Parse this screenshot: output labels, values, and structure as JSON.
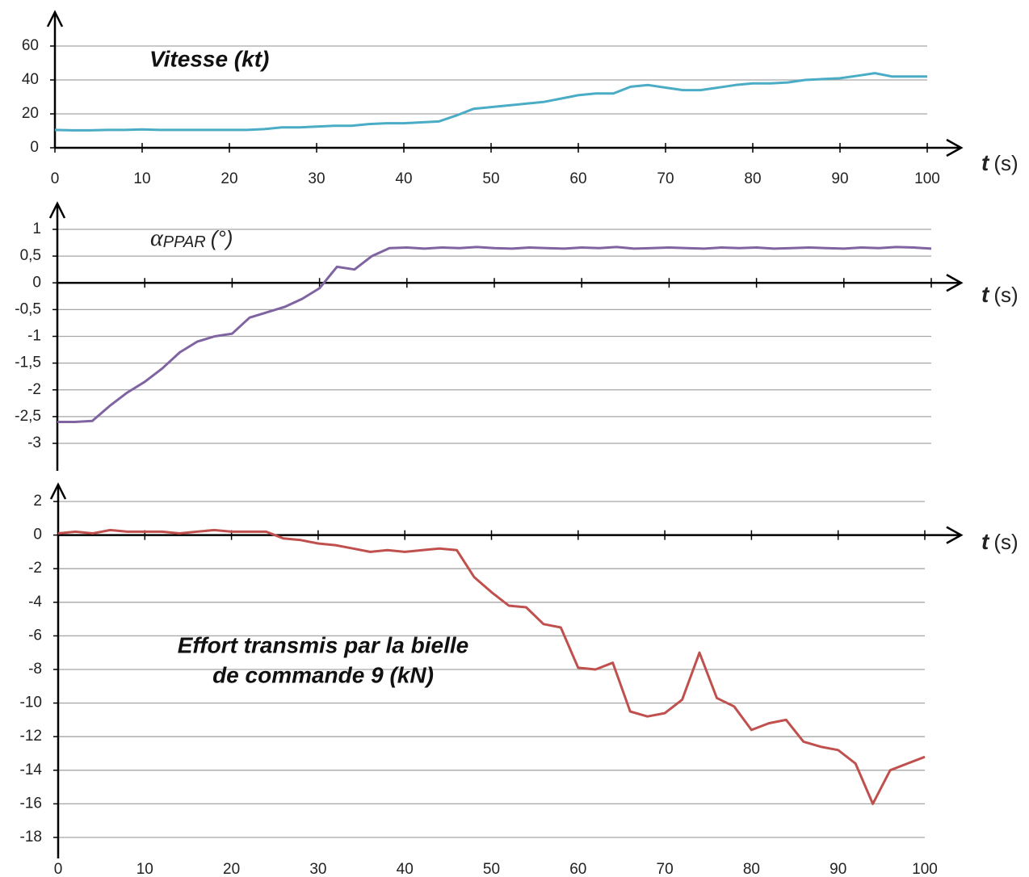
{
  "chart_data": [
    {
      "type": "line",
      "title": "Vitesse (kt)",
      "xlabel": "t",
      "xunit": "(s)",
      "x": [
        0,
        2,
        4,
        6,
        8,
        10,
        12,
        14,
        16,
        18,
        20,
        22,
        24,
        26,
        28,
        30,
        32,
        34,
        36,
        38,
        40,
        42,
        44,
        46,
        48,
        50,
        52,
        54,
        56,
        58,
        60,
        62,
        64,
        66,
        68,
        70,
        72,
        74,
        76,
        78,
        80,
        82,
        84,
        86,
        88,
        90,
        92,
        94,
        96,
        98,
        100
      ],
      "series": [
        {
          "color": "#4bacc6",
          "values": [
            10.5,
            10.3,
            10.3,
            10.5,
            10.5,
            10.8,
            10.5,
            10.5,
            10.5,
            10.5,
            10.5,
            10.5,
            11,
            12,
            12,
            12.5,
            13,
            13,
            14,
            14.5,
            14.5,
            15,
            15.5,
            19,
            23,
            24,
            25,
            26,
            27,
            29,
            31,
            32,
            32,
            36,
            37,
            35.5,
            34,
            34,
            35.5,
            37,
            38,
            38,
            38.5,
            40,
            40.5,
            41,
            42.5,
            44,
            42,
            42,
            42
          ]
        }
      ],
      "xlim": [
        0,
        100
      ],
      "xticks": [
        0,
        10,
        20,
        30,
        40,
        50,
        60,
        70,
        80,
        90,
        100
      ],
      "ylim": [
        0,
        60
      ],
      "yticks": [
        0,
        20,
        40,
        60
      ],
      "grid": true
    },
    {
      "type": "line",
      "ylabel_symbol": "α",
      "ylabel_subscript": "PPAR",
      "ylabel_unit": "(°)",
      "xlabel": "t",
      "xunit": "(s)",
      "x": [
        0,
        2,
        4,
        6,
        8,
        10,
        12,
        14,
        16,
        18,
        20,
        22,
        24,
        26,
        28,
        30,
        32,
        34,
        36,
        38,
        40,
        42,
        44,
        46,
        48,
        50,
        52,
        54,
        56,
        58,
        60,
        62,
        64,
        66,
        68,
        70,
        72,
        74,
        76,
        78,
        80,
        82,
        84,
        86,
        88,
        90,
        92,
        94,
        96,
        98,
        100
      ],
      "series": [
        {
          "color": "#8064a2",
          "values": [
            -2.6,
            -2.6,
            -2.58,
            -2.3,
            -2.05,
            -1.85,
            -1.6,
            -1.3,
            -1.1,
            -1.0,
            -0.95,
            -0.65,
            -0.55,
            -0.45,
            -0.3,
            -0.1,
            0.3,
            0.25,
            0.5,
            0.65,
            0.66,
            0.64,
            0.66,
            0.65,
            0.67,
            0.65,
            0.64,
            0.66,
            0.65,
            0.64,
            0.66,
            0.65,
            0.67,
            0.64,
            0.65,
            0.66,
            0.65,
            0.64,
            0.66,
            0.65,
            0.66,
            0.64,
            0.65,
            0.66,
            0.65,
            0.64,
            0.66,
            0.65,
            0.67,
            0.66,
            0.64
          ]
        }
      ],
      "xlim": [
        0,
        100
      ],
      "ylim": [
        -3,
        1
      ],
      "yticks": [
        {
          "value": -3,
          "label": "-3"
        },
        {
          "value": -2.5,
          "label": "-2,5"
        },
        {
          "value": -2,
          "label": "-2"
        },
        {
          "value": -1.5,
          "label": "-1,5"
        },
        {
          "value": -1,
          "label": "-1"
        },
        {
          "value": -0.5,
          "label": "-0,5"
        },
        0,
        {
          "value": 0.5,
          "label": "0,5"
        },
        1
      ],
      "grid": true
    },
    {
      "type": "line",
      "title": [
        "Effort transmis par la bielle",
        "de commande 9 (kN)"
      ],
      "xlabel": "t",
      "xunit": "(s)",
      "x": [
        0,
        2,
        4,
        6,
        8,
        10,
        12,
        14,
        16,
        18,
        20,
        22,
        24,
        26,
        28,
        30,
        32,
        34,
        36,
        38,
        40,
        42,
        44,
        46,
        48,
        50,
        52,
        54,
        56,
        58,
        60,
        62,
        64,
        66,
        68,
        70,
        72,
        74,
        76,
        78,
        80,
        82,
        84,
        86,
        88,
        90,
        92,
        94,
        96,
        98,
        100
      ],
      "series": [
        {
          "color": "#c0504d",
          "values": [
            0.1,
            0.2,
            0.1,
            0.3,
            0.2,
            0.2,
            0.2,
            0.1,
            0.2,
            0.3,
            0.2,
            0.2,
            0.2,
            -0.2,
            -0.3,
            -0.5,
            -0.6,
            -0.8,
            -1.0,
            -0.9,
            -1.0,
            -0.9,
            -0.8,
            -0.9,
            -2.5,
            -3.4,
            -4.2,
            -4.3,
            -5.3,
            -5.5,
            -7.9,
            -8.0,
            -7.6,
            -10.5,
            -10.8,
            -10.6,
            -9.8,
            -7.0,
            -9.7,
            -10.2,
            -11.6,
            -11.2,
            -11.0,
            -12.3,
            -12.6,
            -12.8,
            -13.6,
            -16.0,
            -14.0,
            -13.6,
            -13.2
          ]
        }
      ],
      "xlim": [
        0,
        100
      ],
      "xticks": [
        0,
        10,
        20,
        30,
        40,
        50,
        60,
        70,
        80,
        90,
        100
      ],
      "ylim": [
        -18,
        2
      ],
      "yticks": [
        -18,
        -16,
        -14,
        -12,
        -10,
        -8,
        -6,
        -4,
        -2,
        0,
        2
      ],
      "grid": true
    }
  ]
}
